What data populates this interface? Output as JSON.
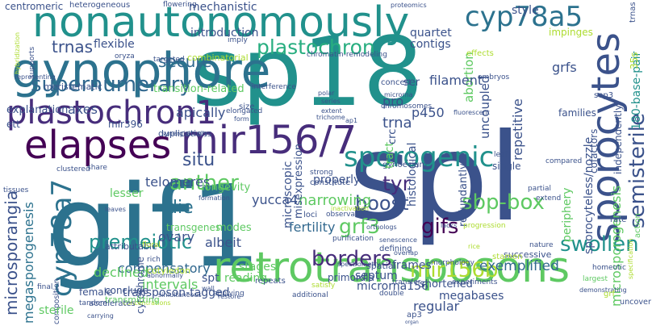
{
  "words": [
    {
      "text": "sp18",
      "color": "#21918c"
    },
    {
      "text": "spl",
      "color": "#3b528b"
    },
    {
      "text": "gif1",
      "color": "#2c728e"
    },
    {
      "text": "retrotransposons",
      "color": "#5ec962"
    },
    {
      "text": "nonautonomously",
      "color": "#21918c"
    },
    {
      "text": "gynophore",
      "color": "#2c728e"
    },
    {
      "text": "sporocytes",
      "color": "#3b528b"
    },
    {
      "text": "plastochron1",
      "color": "#472d7b"
    },
    {
      "text": "mir156/7",
      "color": "#472d7b"
    },
    {
      "text": "elapses",
      "color": "#440154"
    },
    {
      "text": "cyp78a5",
      "color": "#2c728e"
    },
    {
      "text": "cyp78a7",
      "color": "#2c728e"
    },
    {
      "text": "sporogenic",
      "color": "#21918c"
    },
    {
      "text": "semisterile",
      "color": "#3b528b"
    },
    {
      "text": "supernumerary",
      "color": "#31688e"
    },
    {
      "text": "plastochron",
      "color": "#28ae80"
    },
    {
      "text": "microsporangia",
      "color": "#3b528b"
    },
    {
      "text": "sbp-box",
      "color": "#5ec962"
    },
    {
      "text": "premeiotic",
      "color": "#21918c"
    },
    {
      "text": "borders",
      "color": "#472d7b"
    },
    {
      "text": "mir156b",
      "color": "#addc30"
    },
    {
      "text": "swollen",
      "color": "#21918c"
    },
    {
      "text": "boost",
      "color": "#3b528b"
    },
    {
      "text": "gifs",
      "color": "#440154"
    },
    {
      "text": "anther",
      "color": "#5ec962"
    },
    {
      "text": "tyr",
      "color": "#472d7b"
    },
    {
      "text": "grf3",
      "color": "#5ec962"
    },
    {
      "text": "secure",
      "color": "#31688e"
    },
    {
      "text": "situ",
      "color": "#3b528b"
    },
    {
      "text": "die",
      "color": "#2c728e"
    },
    {
      "text": "trnas",
      "color": "#3b528b"
    },
    {
      "text": "narrowing",
      "color": "#5ec962"
    },
    {
      "text": "compensatory",
      "color": "#31688e"
    },
    {
      "text": "megasporogenesis",
      "color": "#2c728e"
    },
    {
      "text": "microsporogenesis",
      "color": "#5ec962"
    },
    {
      "text": "sporocyteless/nozzle",
      "color": "#3b528b"
    },
    {
      "text": "180-base-pair",
      "color": "#21918c"
    },
    {
      "text": "exemplified",
      "color": "#31688e"
    },
    {
      "text": "declined",
      "color": "#5ec962"
    },
    {
      "text": "transposon-tagged",
      "color": "#3b528b"
    },
    {
      "text": "fertility",
      "color": "#31688e"
    },
    {
      "text": "yucca4",
      "color": "#3b528b"
    },
    {
      "text": "telomeres",
      "color": "#3b528b"
    },
    {
      "text": "microrna156",
      "color": "#3b528b"
    },
    {
      "text": "intervals",
      "color": "#5ec962"
    },
    {
      "text": "ovary",
      "color": "#3b528b"
    },
    {
      "text": "albeit",
      "color": "#3b528b"
    },
    {
      "text": "septum",
      "color": "#3b528b"
    },
    {
      "text": "megabases",
      "color": "#3b528b"
    },
    {
      "text": "shortened",
      "color": "#3b528b"
    },
    {
      "text": "frames",
      "color": "#3b528b"
    },
    {
      "text": "periphery",
      "color": "#5ec962"
    },
    {
      "text": "redundantly",
      "color": "#3b528b"
    },
    {
      "text": "properly",
      "color": "#3b528b"
    },
    {
      "text": "histological",
      "color": "#3b528b"
    },
    {
      "text": "gynoecium",
      "color": "#3b528b"
    },
    {
      "text": "regular",
      "color": "#3b528b"
    },
    {
      "text": "stages",
      "color": "#5ec962"
    },
    {
      "text": "spt",
      "color": "#3b528b"
    },
    {
      "text": "reading",
      "color": "#5ec962"
    },
    {
      "text": "modes",
      "color": "#5ec962"
    },
    {
      "text": "longevity",
      "color": "#5ec962"
    },
    {
      "text": "cytochrome",
      "color": "#3b528b"
    },
    {
      "text": "pro",
      "color": "#3b528b"
    },
    {
      "text": "trna",
      "color": "#3b528b"
    },
    {
      "text": "tract",
      "color": "#5ec962"
    },
    {
      "text": "crc",
      "color": "#3b528b"
    },
    {
      "text": "repetitive",
      "color": "#3b528b"
    },
    {
      "text": "cofactors",
      "color": "#3b528b"
    },
    {
      "text": "abortion",
      "color": "#5ec962"
    },
    {
      "text": "uncoupled",
      "color": "#3b528b"
    },
    {
      "text": "filament",
      "color": "#3b528b"
    },
    {
      "text": "p450",
      "color": "#3b528b"
    },
    {
      "text": "ser",
      "color": "#3b528b"
    },
    {
      "text": "grfs",
      "color": "#3b528b"
    },
    {
      "text": "successive",
      "color": "#3b528b"
    },
    {
      "text": "microscopic",
      "color": "#3b528b"
    },
    {
      "text": "misexpression",
      "color": "#3b528b"
    },
    {
      "text": "apically",
      "color": "#3b528b"
    },
    {
      "text": "axes",
      "color": "#3b528b"
    },
    {
      "text": "explanation",
      "color": "#3b528b"
    },
    {
      "text": "ett",
      "color": "#3b528b"
    },
    {
      "text": "mir396",
      "color": "#3b528b"
    },
    {
      "text": "duplications",
      "color": "#3b528b"
    },
    {
      "text": "transition-related",
      "color": "#5ec962"
    },
    {
      "text": "meristematic",
      "color": "#3b528b"
    },
    {
      "text": "flexible",
      "color": "#3b528b"
    },
    {
      "text": "introduction",
      "color": "#3b528b"
    },
    {
      "text": "mechanistic",
      "color": "#3b528b"
    },
    {
      "text": "quartet",
      "color": "#3b528b"
    },
    {
      "text": "contigs",
      "color": "#3b528b"
    },
    {
      "text": "style",
      "color": "#3b528b"
    },
    {
      "text": "impinges",
      "color": "#addc30"
    },
    {
      "text": "centromeric",
      "color": "#3b528b"
    },
    {
      "text": "heterogeneous",
      "color": "#3b528b"
    },
    {
      "text": "flowering",
      "color": "#3b528b"
    },
    {
      "text": "proteomics",
      "color": "#3b528b"
    },
    {
      "text": "lesser",
      "color": "#5ec962"
    },
    {
      "text": "transgenes",
      "color": "#5ec962"
    },
    {
      "text": "combinatorial",
      "color": "#addc30"
    },
    {
      "text": "chromatin-remodeling",
      "color": "#3b528b"
    },
    {
      "text": "interference",
      "color": "#3b528b"
    },
    {
      "text": "size",
      "color": "#3b528b"
    },
    {
      "text": "concert",
      "color": "#3b528b"
    },
    {
      "text": "chromosomes",
      "color": "#3b528b"
    },
    {
      "text": "microrna",
      "color": "#3b528b"
    },
    {
      "text": "polar",
      "color": "#3b528b"
    },
    {
      "text": "series",
      "color": "#3b528b"
    },
    {
      "text": "trichome",
      "color": "#3b528b"
    },
    {
      "text": "extent",
      "color": "#3b528b"
    },
    {
      "text": "ap1",
      "color": "#3b528b"
    },
    {
      "text": "sep3",
      "color": "#3b528b"
    },
    {
      "text": "families",
      "color": "#3b528b"
    },
    {
      "text": "fluorescent",
      "color": "#3b528b"
    },
    {
      "text": "strong",
      "color": "#3b528b"
    },
    {
      "text": "loci",
      "color": "#3b528b"
    },
    {
      "text": "constitute",
      "color": "#3b528b"
    },
    {
      "text": "observations",
      "color": "#3b528b"
    },
    {
      "text": "orthologs",
      "color": "#3b528b"
    },
    {
      "text": "inactivation",
      "color": "#addc30"
    },
    {
      "text": "senescence",
      "color": "#3b528b"
    },
    {
      "text": "defining",
      "color": "#3b528b"
    },
    {
      "text": "purification",
      "color": "#3b528b"
    },
    {
      "text": "spatial",
      "color": "#3b528b"
    },
    {
      "text": "overlap",
      "color": "#3b528b"
    },
    {
      "text": "stamen",
      "color": "#addc30"
    },
    {
      "text": "rice",
      "color": "#addc30"
    },
    {
      "text": "morphology",
      "color": "#3b528b"
    },
    {
      "text": "primordia",
      "color": "#3b528b"
    },
    {
      "text": "spectrometry",
      "color": "#3b528b"
    },
    {
      "text": "progression",
      "color": "#addc30"
    },
    {
      "text": "lacks",
      "color": "#3b528b"
    },
    {
      "text": "experiments",
      "color": "#3b528b"
    },
    {
      "text": "demonstrating",
      "color": "#3b528b"
    },
    {
      "text": "nature",
      "color": "#3b528b"
    },
    {
      "text": "homeotic",
      "color": "#3b528b"
    },
    {
      "text": "largest",
      "color": "#5ec962"
    },
    {
      "text": "grf",
      "color": "#addc30"
    },
    {
      "text": "uncover",
      "color": "#3b528b"
    },
    {
      "text": "specification",
      "color": "#addc30"
    },
    {
      "text": "action",
      "color": "#5ec962"
    },
    {
      "text": "independently",
      "color": "#3b528b"
    },
    {
      "text": "trnas",
      "color": "#3b528b"
    },
    {
      "text": "35s",
      "color": "#addc30"
    },
    {
      "text": "rate",
      "color": "#3b528b"
    },
    {
      "text": "compared",
      "color": "#3b528b"
    },
    {
      "text": "partial",
      "color": "#3b528b"
    },
    {
      "text": "extend",
      "color": "#3b528b"
    },
    {
      "text": "single",
      "color": "#3b528b"
    },
    {
      "text": "leaf",
      "color": "#3b528b"
    },
    {
      "text": "effects",
      "color": "#addc30"
    },
    {
      "text": "embryos",
      "color": "#3b528b"
    },
    {
      "text": "rich",
      "color": "#3b528b"
    },
    {
      "text": "cotyledon",
      "color": "#addc30"
    },
    {
      "text": "abnormally",
      "color": "#3b528b"
    },
    {
      "text": "concentrations",
      "color": "#addc30"
    },
    {
      "text": "simultaneous",
      "color": "#3b528b"
    },
    {
      "text": "applying",
      "color": "#3b528b"
    },
    {
      "text": "conclude",
      "color": "#3b528b"
    },
    {
      "text": "wall",
      "color": "#3b528b"
    },
    {
      "text": "restore",
      "color": "#3b528b"
    },
    {
      "text": "repeats",
      "color": "#3b528b"
    },
    {
      "text": "additional",
      "color": "#3b528b"
    },
    {
      "text": "satisfy",
      "color": "#addc30"
    },
    {
      "text": "transfer",
      "color": "#3b528b"
    },
    {
      "text": "double",
      "color": "#3b528b"
    },
    {
      "text": "ap3",
      "color": "#3b528b"
    },
    {
      "text": "organ",
      "color": "#3b528b"
    },
    {
      "text": "female",
      "color": "#3b528b"
    },
    {
      "text": "transmitting",
      "color": "#5ec962"
    },
    {
      "text": "final",
      "color": "#3b528b"
    },
    {
      "text": "tandem",
      "color": "#3b528b"
    },
    {
      "text": "accelerates",
      "color": "#3b528b"
    },
    {
      "text": "carrying",
      "color": "#3b528b"
    },
    {
      "text": "composition",
      "color": "#3b528b"
    },
    {
      "text": "sterile",
      "color": "#5ec962"
    },
    {
      "text": "tissues",
      "color": "#3b528b"
    },
    {
      "text": "leaves",
      "color": "#3b528b"
    },
    {
      "text": "attributable",
      "color": "#3b528b"
    },
    {
      "text": "floral",
      "color": "#addc30"
    },
    {
      "text": "formation",
      "color": "#3b528b"
    },
    {
      "text": "representing",
      "color": "#3b528b"
    },
    {
      "text": "clustered",
      "color": "#3b528b"
    },
    {
      "text": "share",
      "color": "#3b528b"
    },
    {
      "text": "synergistically",
      "color": "#3b528b"
    },
    {
      "text": "form",
      "color": "#3b528b"
    },
    {
      "text": "elongated",
      "color": "#3b528b"
    },
    {
      "text": "targeted",
      "color": "#3b528b"
    },
    {
      "text": "oryza",
      "color": "#3b528b"
    },
    {
      "text": "supports",
      "color": "#3b528b"
    },
    {
      "text": "hybridization",
      "color": "#addc30"
    },
    {
      "text": "imply",
      "color": "#3b528b"
    }
  ]
}
